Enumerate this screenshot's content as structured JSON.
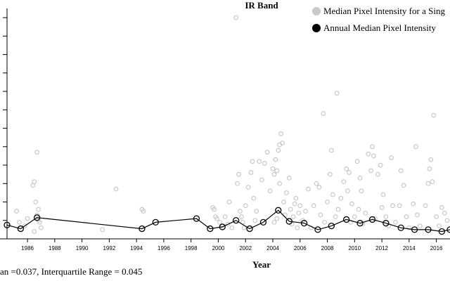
{
  "chart_data": {
    "type": "scatter",
    "title": "IR Band",
    "xlabel": "Year",
    "ylabel": "",
    "xlim": [
      1984.5,
      2017.0
    ],
    "ylim": [
      0.0,
      0.125
    ],
    "grid": false,
    "legend_position": "top-right",
    "x_ticks": [
      1986,
      1988,
      1990,
      1992,
      1994,
      1996,
      1998,
      2000,
      2002,
      2004,
      2006,
      2008,
      2010,
      2012,
      2014,
      2016
    ],
    "x_tick_labels": [
      "1986",
      "1988",
      "1990",
      "1992",
      "1994",
      "1996",
      "1998",
      "2000",
      "2002",
      "2004",
      "2006",
      "2008",
      "2010",
      "2012",
      "2014",
      "2016"
    ],
    "y_ticks": [
      0.0,
      0.01,
      0.02,
      0.03,
      0.04,
      0.05,
      0.06,
      0.07,
      0.08,
      0.09,
      0.1,
      0.11,
      0.12
    ],
    "colors": {
      "scene_points": "#c8c8c8",
      "annual_line": "#000000"
    },
    "series": [
      {
        "name": "Median Pixel Intensity for a Sing",
        "kind": "scatter",
        "points": [
          [
            1985.2,
            0.015
          ],
          [
            1985.4,
            0.009
          ],
          [
            1985.8,
            0.007
          ],
          [
            1986.0,
            0.011
          ],
          [
            1986.4,
            0.029
          ],
          [
            1986.5,
            0.031
          ],
          [
            1986.6,
            0.02
          ],
          [
            1986.7,
            0.047
          ],
          [
            1986.7,
            0.013
          ],
          [
            1986.8,
            0.01
          ],
          [
            1986.8,
            0.016
          ],
          [
            1986.9,
            0.009
          ],
          [
            1987.0,
            0.006
          ],
          [
            1986.5,
            0.004
          ],
          [
            1991.5,
            0.005
          ],
          [
            1992.5,
            0.027
          ],
          [
            1994.4,
            0.016
          ],
          [
            1994.5,
            0.015
          ],
          [
            1999.6,
            0.017
          ],
          [
            1999.7,
            0.016
          ],
          [
            1999.8,
            0.012
          ],
          [
            1999.9,
            0.011
          ],
          [
            2000.1,
            0.009
          ],
          [
            2000.3,
            0.007
          ],
          [
            2000.5,
            0.012
          ],
          [
            2000.7,
            0.008
          ],
          [
            2000.8,
            0.02
          ],
          [
            2001.0,
            0.006
          ],
          [
            2001.3,
            0.12
          ],
          [
            2001.4,
            0.03
          ],
          [
            2001.5,
            0.035
          ],
          [
            2001.6,
            0.015
          ],
          [
            2001.7,
            0.012
          ],
          [
            2001.8,
            0.009
          ],
          [
            2001.9,
            0.006
          ],
          [
            2002.0,
            0.018
          ],
          [
            2002.2,
            0.028
          ],
          [
            2002.4,
            0.036
          ],
          [
            2002.5,
            0.042
          ],
          [
            2002.6,
            0.022
          ],
          [
            2002.7,
            0.01
          ],
          [
            2002.8,
            0.015
          ],
          [
            2003.0,
            0.042
          ],
          [
            2003.2,
            0.032
          ],
          [
            2003.4,
            0.041
          ],
          [
            2003.6,
            0.047
          ],
          [
            2003.8,
            0.026
          ],
          [
            2004.0,
            0.038
          ],
          [
            2004.1,
            0.035
          ],
          [
            2004.2,
            0.043
          ],
          [
            2004.3,
            0.037
          ],
          [
            2004.4,
            0.048
          ],
          [
            2004.5,
            0.051
          ],
          [
            2004.6,
            0.057
          ],
          [
            2004.7,
            0.052
          ],
          [
            2004.5,
            0.03
          ],
          [
            2004.3,
            0.011
          ],
          [
            2004.1,
            0.009
          ],
          [
            2004.8,
            0.02
          ],
          [
            2004.9,
            0.013
          ],
          [
            2005.0,
            0.025
          ],
          [
            2005.2,
            0.033
          ],
          [
            2005.3,
            0.016
          ],
          [
            2005.4,
            0.008
          ],
          [
            2005.5,
            0.012
          ],
          [
            2005.6,
            0.019
          ],
          [
            2005.7,
            0.022
          ],
          [
            2005.8,
            0.006
          ],
          [
            2005.9,
            0.014
          ],
          [
            2006.0,
            0.018
          ],
          [
            2006.2,
            0.01
          ],
          [
            2006.4,
            0.015
          ],
          [
            2006.6,
            0.027
          ],
          [
            2006.8,
            0.006
          ],
          [
            2007.0,
            0.018
          ],
          [
            2007.2,
            0.03
          ],
          [
            2007.4,
            0.028
          ],
          [
            2007.5,
            0.013
          ],
          [
            2007.7,
            0.068
          ],
          [
            2007.8,
            0.009
          ],
          [
            2008.0,
            0.02
          ],
          [
            2008.2,
            0.035
          ],
          [
            2008.3,
            0.048
          ],
          [
            2008.4,
            0.024
          ],
          [
            2008.6,
            0.012
          ],
          [
            2008.7,
            0.079
          ],
          [
            2008.8,
            0.016
          ],
          [
            2009.0,
            0.022
          ],
          [
            2009.2,
            0.031
          ],
          [
            2009.4,
            0.038
          ],
          [
            2009.5,
            0.026
          ],
          [
            2009.6,
            0.036
          ],
          [
            2009.7,
            0.009
          ],
          [
            2009.8,
            0.019
          ],
          [
            2010.0,
            0.012
          ],
          [
            2010.2,
            0.042
          ],
          [
            2010.3,
            0.016
          ],
          [
            2010.4,
            0.033
          ],
          [
            2010.5,
            0.026
          ],
          [
            2010.6,
            0.008
          ],
          [
            2010.8,
            0.014
          ],
          [
            2011.0,
            0.046
          ],
          [
            2011.2,
            0.037
          ],
          [
            2011.3,
            0.05
          ],
          [
            2011.4,
            0.045
          ],
          [
            2011.5,
            0.011
          ],
          [
            2011.7,
            0.035
          ],
          [
            2011.9,
            0.04
          ],
          [
            2012.0,
            0.017
          ],
          [
            2012.1,
            0.024
          ],
          [
            2012.3,
            0.012
          ],
          [
            2012.5,
            0.007
          ],
          [
            2012.7,
            0.044
          ],
          [
            2012.8,
            0.018
          ],
          [
            2013.0,
            0.009
          ],
          [
            2013.3,
            0.018
          ],
          [
            2013.4,
            0.037
          ],
          [
            2013.6,
            0.029
          ],
          [
            2013.8,
            0.012
          ],
          [
            2014.0,
            0.006
          ],
          [
            2014.3,
            0.019
          ],
          [
            2014.5,
            0.05
          ],
          [
            2014.6,
            0.013
          ],
          [
            2014.8,
            0.007
          ],
          [
            2015.2,
            0.018
          ],
          [
            2015.4,
            0.03
          ],
          [
            2015.5,
            0.038
          ],
          [
            2015.6,
            0.043
          ],
          [
            2015.7,
            0.031
          ],
          [
            2015.8,
            0.067
          ],
          [
            2016.0,
            0.012
          ],
          [
            2016.2,
            0.007
          ],
          [
            2016.4,
            0.017
          ],
          [
            2016.6,
            0.014
          ],
          [
            2016.8,
            0.01
          ]
        ]
      },
      {
        "name": "Annual Median Pixel Intensity",
        "kind": "line",
        "points": [
          [
            1984.5,
            0.0075
          ],
          [
            1985.5,
            0.0055
          ],
          [
            1986.7,
            0.0115
          ],
          [
            1994.4,
            0.0055
          ],
          [
            1995.4,
            0.009
          ],
          [
            1998.4,
            0.011
          ],
          [
            1999.4,
            0.0055
          ],
          [
            2000.3,
            0.0065
          ],
          [
            2001.3,
            0.01
          ],
          [
            2002.3,
            0.0055
          ],
          [
            2003.3,
            0.009
          ],
          [
            2004.4,
            0.0155
          ],
          [
            2005.2,
            0.0095
          ],
          [
            2006.3,
            0.0085
          ],
          [
            2007.3,
            0.005
          ],
          [
            2008.3,
            0.007
          ],
          [
            2009.4,
            0.0105
          ],
          [
            2010.4,
            0.0085
          ],
          [
            2011.3,
            0.0105
          ],
          [
            2012.3,
            0.0085
          ],
          [
            2013.4,
            0.006
          ],
          [
            2014.4,
            0.005
          ],
          [
            2015.4,
            0.005
          ],
          [
            2016.4,
            0.004
          ],
          [
            2017.0,
            0.005
          ]
        ]
      }
    ],
    "footer_text": "an =0.037, Interquartile Range = 0.045"
  }
}
